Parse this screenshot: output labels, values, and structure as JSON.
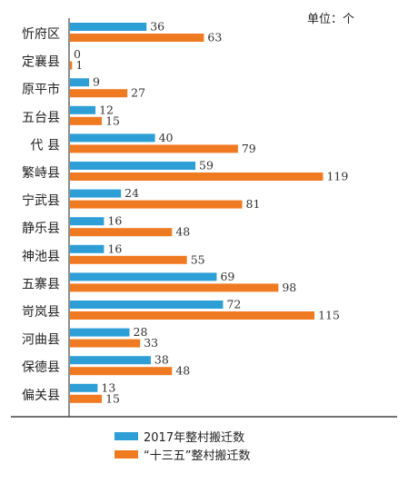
{
  "chart_data": {
    "type": "bar",
    "orientation": "horizontal",
    "unit_label": "单位：个",
    "categories": [
      "忻府区",
      "定襄县",
      "原平市",
      "五台县",
      "代 县",
      "繁峙县",
      "宁武县",
      "静乐县",
      "神池县",
      "五寨县",
      "岢岚县",
      "河曲县",
      "保德县",
      "偏关县"
    ],
    "series": [
      {
        "name": "2017年整村搬迁数",
        "color": "#2e9fd6",
        "values": [
          36,
          0,
          9,
          12,
          40,
          59,
          24,
          16,
          16,
          69,
          72,
          28,
          38,
          13
        ]
      },
      {
        "name": "“十三五”整村搬迁数",
        "color": "#f07a22",
        "values": [
          63,
          1,
          27,
          15,
          79,
          119,
          81,
          48,
          55,
          98,
          115,
          33,
          48,
          15
        ]
      }
    ],
    "x_range": [
      0,
      125
    ],
    "grid": false,
    "legend_position": "bottom"
  }
}
